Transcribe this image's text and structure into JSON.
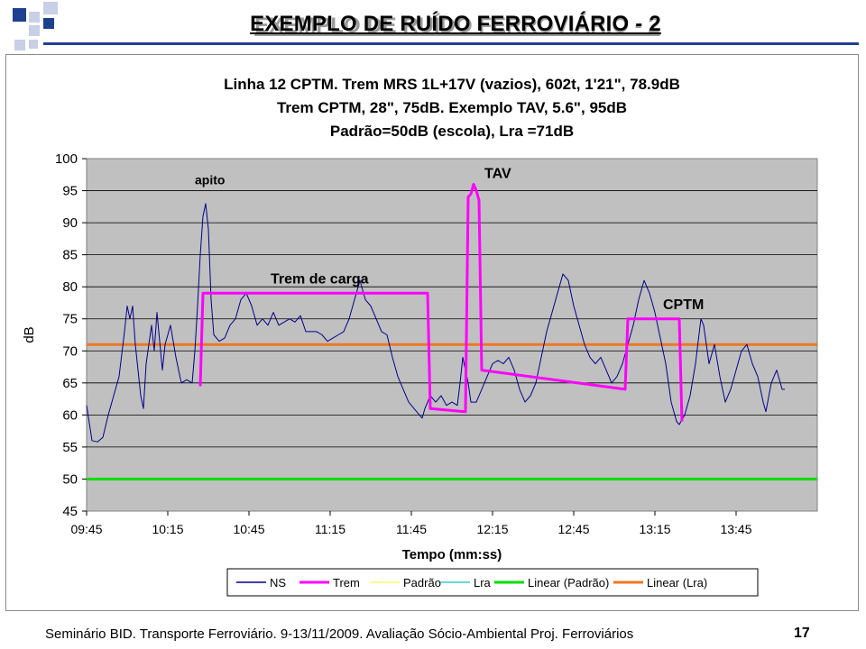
{
  "slide": {
    "title": "EXEMPLO DE RUÍDO FERROVIÁRIO - 2",
    "footer": "Seminário BID. Transporte Ferroviário. 9-13/11/2009. Avaliação Sócio-Ambiental Proj. Ferroviários",
    "page_number": "17",
    "accent_color": "#1f3f8f"
  },
  "chart_data": {
    "type": "line",
    "title_lines": [
      "Linha 12 CPTM. Trem MRS 1L+17V (vazios), 602t, 1'21\", 78.9dB",
      "Trem CPTM, 28\", 75dB.   Exemplo TAV, 5.6\", 95dB",
      "Padrão=50dB (escola), Lra =71dB"
    ],
    "xlabel": "Tempo (mm:ss)",
    "ylabel": "dB",
    "x_tick_labels": [
      "09:45",
      "10:15",
      "10:45",
      "11:15",
      "11:45",
      "12:15",
      "12:45",
      "13:15",
      "13:45"
    ],
    "xlim": [
      "09:45",
      "14:15"
    ],
    "ylim": [
      45,
      100
    ],
    "y_ticks": [
      45,
      50,
      55,
      60,
      65,
      70,
      75,
      80,
      85,
      90,
      95,
      100
    ],
    "grid": true,
    "plot_background": "#c0c0c0",
    "annotations": [
      {
        "text": "apito",
        "x": "10:25",
        "y": 96
      },
      {
        "text": "Trem de carga",
        "x": "10:53",
        "y": 80.5
      },
      {
        "text": "TAV",
        "x": "12:12",
        "y": 97
      },
      {
        "text": "CPTM",
        "x": "13:18",
        "y": 76.5
      }
    ],
    "legend": {
      "position": "bottom",
      "entries": [
        {
          "name": "NS",
          "color": "#00008b"
        },
        {
          "name": "Trem",
          "color": "#ff00ff"
        },
        {
          "name": "Padrão",
          "color": "#ffff66"
        },
        {
          "name": "Lra",
          "color": "#33cccc"
        },
        {
          "name": "Linear (Padrão)",
          "color": "#00dd00"
        },
        {
          "name": "Linear (Lra)",
          "color": "#ee7722"
        }
      ]
    },
    "series": [
      {
        "name": "NS",
        "color": "#00008b",
        "points": [
          [
            "09:45",
            61.5
          ],
          [
            "09:47",
            56
          ],
          [
            "09:49",
            55.8
          ],
          [
            "09:51",
            56.5
          ],
          [
            "09:53",
            60
          ],
          [
            "09:55",
            63
          ],
          [
            "09:57",
            66
          ],
          [
            "09:59",
            73
          ],
          [
            "10:00",
            77
          ],
          [
            "10:01",
            75
          ],
          [
            "10:02",
            77
          ],
          [
            "10:03",
            71
          ],
          [
            "10:05",
            63
          ],
          [
            "10:06",
            61
          ],
          [
            "10:07",
            68
          ],
          [
            "10:09",
            74
          ],
          [
            "10:10",
            70
          ],
          [
            "10:11",
            76
          ],
          [
            "10:13",
            67
          ],
          [
            "10:14",
            71
          ],
          [
            "10:16",
            74
          ],
          [
            "10:18",
            69
          ],
          [
            "10:20",
            65
          ],
          [
            "10:22",
            65.5
          ],
          [
            "10:24",
            65
          ],
          [
            "10:25",
            70
          ],
          [
            "10:26",
            77
          ],
          [
            "10:27",
            85
          ],
          [
            "10:28",
            91
          ],
          [
            "10:29",
            93
          ],
          [
            "10:30",
            89
          ],
          [
            "10:31",
            78
          ],
          [
            "10:32",
            72.5
          ],
          [
            "10:34",
            71.5
          ],
          [
            "10:36",
            72
          ],
          [
            "10:38",
            74
          ],
          [
            "10:40",
            75
          ],
          [
            "10:42",
            78
          ],
          [
            "10:44",
            79
          ],
          [
            "10:46",
            77
          ],
          [
            "10:48",
            74
          ],
          [
            "10:50",
            75
          ],
          [
            "10:52",
            74
          ],
          [
            "10:54",
            76
          ],
          [
            "10:56",
            74
          ],
          [
            "10:58",
            74.5
          ],
          [
            "11:00",
            75
          ],
          [
            "11:02",
            74.5
          ],
          [
            "11:04",
            75.5
          ],
          [
            "11:06",
            73
          ],
          [
            "11:08",
            73
          ],
          [
            "11:10",
            73
          ],
          [
            "11:12",
            72.5
          ],
          [
            "11:14",
            71.5
          ],
          [
            "11:16",
            72
          ],
          [
            "11:18",
            72.5
          ],
          [
            "11:20",
            73
          ],
          [
            "11:22",
            75
          ],
          [
            "11:24",
            78
          ],
          [
            "11:26",
            81
          ],
          [
            "11:28",
            78
          ],
          [
            "11:30",
            77
          ],
          [
            "11:32",
            75
          ],
          [
            "11:34",
            73
          ],
          [
            "11:36",
            72.5
          ],
          [
            "11:38",
            69
          ],
          [
            "11:40",
            66
          ],
          [
            "11:42",
            64
          ],
          [
            "11:44",
            62
          ],
          [
            "11:46",
            61
          ],
          [
            "11:48",
            60
          ],
          [
            "11:49",
            59.5
          ],
          [
            "11:50",
            61
          ],
          [
            "11:52",
            63
          ],
          [
            "11:54",
            62
          ],
          [
            "11:56",
            63
          ],
          [
            "11:58",
            61.5
          ],
          [
            "12:00",
            62
          ],
          [
            "12:02",
            61.5
          ],
          [
            "12:03",
            65
          ],
          [
            "12:04",
            69
          ],
          [
            "12:05",
            67
          ],
          [
            "12:06",
            65
          ],
          [
            "12:07",
            62
          ],
          [
            "12:09",
            62
          ],
          [
            "12:11",
            64
          ],
          [
            "12:13",
            66
          ],
          [
            "12:15",
            68
          ],
          [
            "12:17",
            68.5
          ],
          [
            "12:19",
            68
          ],
          [
            "12:21",
            69
          ],
          [
            "12:23",
            67
          ],
          [
            "12:25",
            64
          ],
          [
            "12:27",
            62
          ],
          [
            "12:29",
            63
          ],
          [
            "12:31",
            65
          ],
          [
            "12:33",
            69
          ],
          [
            "12:35",
            73
          ],
          [
            "12:37",
            76
          ],
          [
            "12:39",
            79
          ],
          [
            "12:41",
            82
          ],
          [
            "12:43",
            81
          ],
          [
            "12:45",
            77
          ],
          [
            "12:47",
            74
          ],
          [
            "12:49",
            71
          ],
          [
            "12:51",
            69
          ],
          [
            "12:53",
            68
          ],
          [
            "12:55",
            69
          ],
          [
            "12:57",
            67
          ],
          [
            "12:59",
            65
          ],
          [
            "13:01",
            66
          ],
          [
            "13:03",
            68
          ],
          [
            "13:05",
            71
          ],
          [
            "13:07",
            74
          ],
          [
            "13:09",
            78
          ],
          [
            "13:11",
            81
          ],
          [
            "13:13",
            79
          ],
          [
            "13:15",
            76
          ],
          [
            "13:17",
            72
          ],
          [
            "13:19",
            68
          ],
          [
            "13:21",
            62
          ],
          [
            "13:23",
            59
          ],
          [
            "13:24",
            58.5
          ],
          [
            "13:26",
            60
          ],
          [
            "13:28",
            63
          ],
          [
            "13:30",
            68
          ],
          [
            "13:32",
            75
          ],
          [
            "13:33",
            74
          ],
          [
            "13:35",
            68
          ],
          [
            "13:37",
            71
          ],
          [
            "13:39",
            66
          ],
          [
            "13:41",
            62
          ],
          [
            "13:43",
            64
          ],
          [
            "13:45",
            67
          ],
          [
            "13:47",
            70
          ],
          [
            "13:49",
            71
          ],
          [
            "13:51",
            68
          ],
          [
            "13:53",
            66
          ],
          [
            "13:55",
            62
          ],
          [
            "13:56",
            60.5
          ],
          [
            "13:58",
            65
          ],
          [
            "14:00",
            67
          ],
          [
            "14:02",
            64
          ],
          [
            "14:03",
            64
          ]
        ]
      },
      {
        "name": "Trem",
        "color": "#ff00ff",
        "points": [
          [
            "10:27",
            64.5
          ],
          [
            "10:28",
            79
          ],
          [
            "11:51",
            79
          ],
          [
            "11:52",
            61
          ],
          [
            "12:05",
            60.5
          ],
          [
            "12:06",
            94
          ],
          [
            "12:07",
            94.5
          ],
          [
            "12:08",
            96
          ],
          [
            "12:09",
            95
          ],
          [
            "12:10",
            93.5
          ],
          [
            "12:11",
            67
          ],
          [
            "13:04",
            64
          ],
          [
            "13:05",
            75
          ],
          [
            "13:24",
            75
          ],
          [
            "13:25",
            59
          ]
        ]
      },
      {
        "name": "Linear (Padrão)",
        "color": "#00dd00",
        "points": [
          [
            "09:45",
            50
          ],
          [
            "14:15",
            50
          ]
        ]
      },
      {
        "name": "Linear (Lra)",
        "color": "#ee7722",
        "points": [
          [
            "09:45",
            71
          ],
          [
            "14:15",
            71
          ]
        ]
      }
    ]
  }
}
